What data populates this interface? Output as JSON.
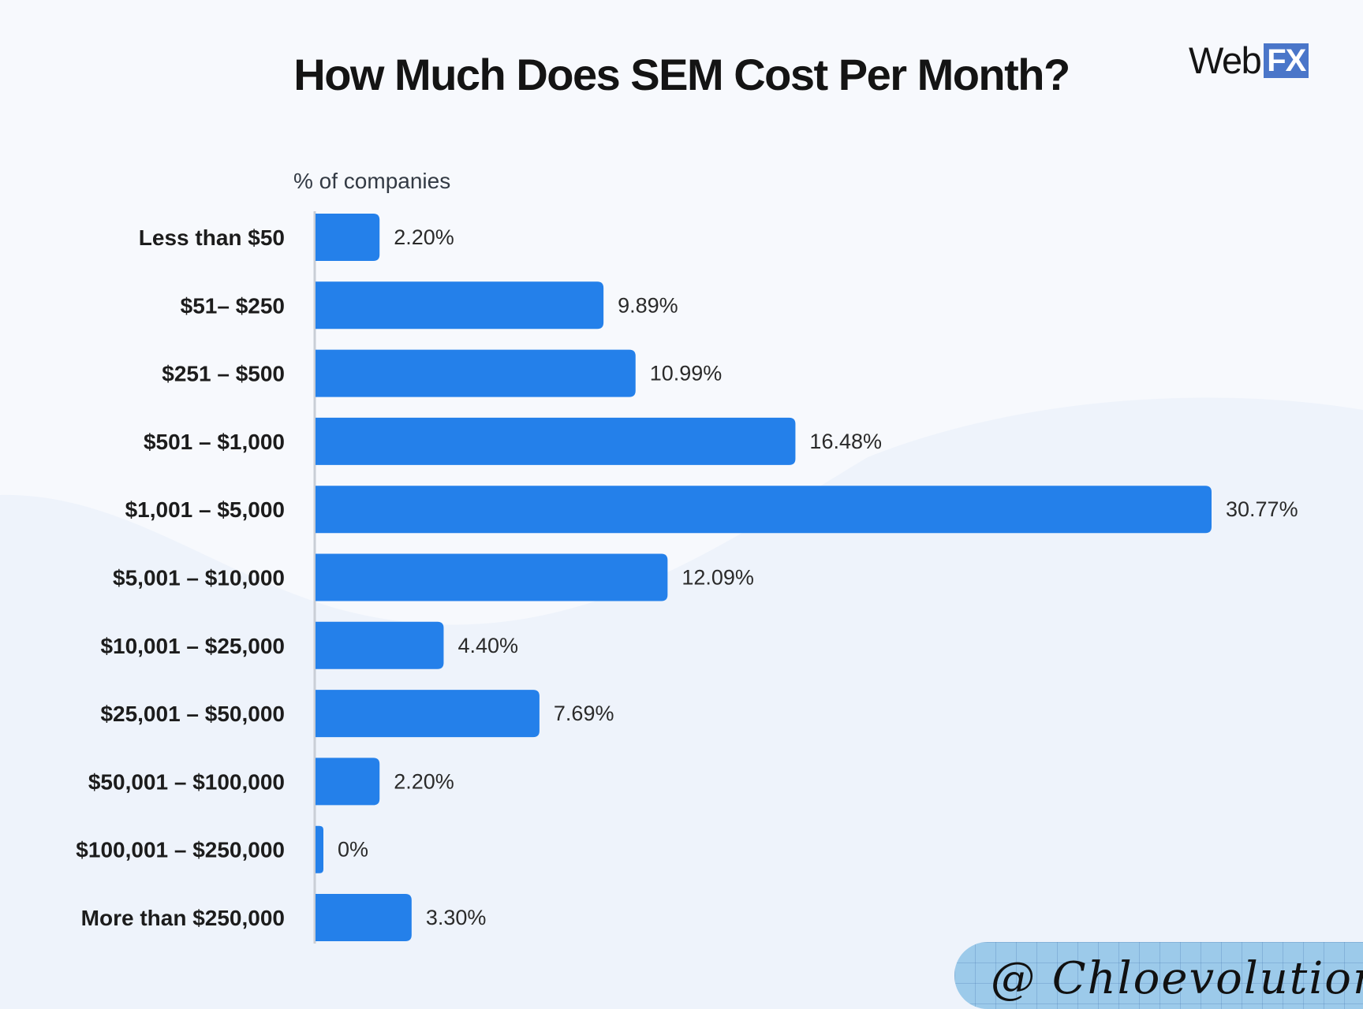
{
  "title": "How Much Does SEM Cost Per Month?",
  "logo": {
    "word": "Web",
    "badge": "FX",
    "badge_color": "#4a76c9"
  },
  "bar_color": "#2480ea",
  "watermark": "@ Chloevolution",
  "chart_data": {
    "type": "bar",
    "orientation": "horizontal",
    "title": "How Much Does SEM Cost Per Month?",
    "unit_label": "% of companies",
    "categories": [
      "Less than $50",
      "$51– $250",
      "$251 – $500",
      "$501 – $1,000",
      "$1,001 – $5,000",
      "$5,001 – $10,000",
      "$10,001 – $25,000",
      "$25,001 – $50,000",
      "$50,001 – $100,000",
      "$100,001 – $250,000",
      "More than $250,000"
    ],
    "values": [
      2.2,
      9.89,
      10.99,
      16.48,
      30.77,
      12.09,
      4.4,
      7.69,
      2.2,
      0,
      3.3
    ],
    "value_labels": [
      "2.20%",
      "9.89%",
      "10.99%",
      "16.48%",
      "30.77%",
      "12.09%",
      "4.40%",
      "7.69%",
      "2.20%",
      "0%",
      "3.30%"
    ],
    "xlim": [
      0,
      30.77
    ],
    "grid": false,
    "legend": "none"
  }
}
